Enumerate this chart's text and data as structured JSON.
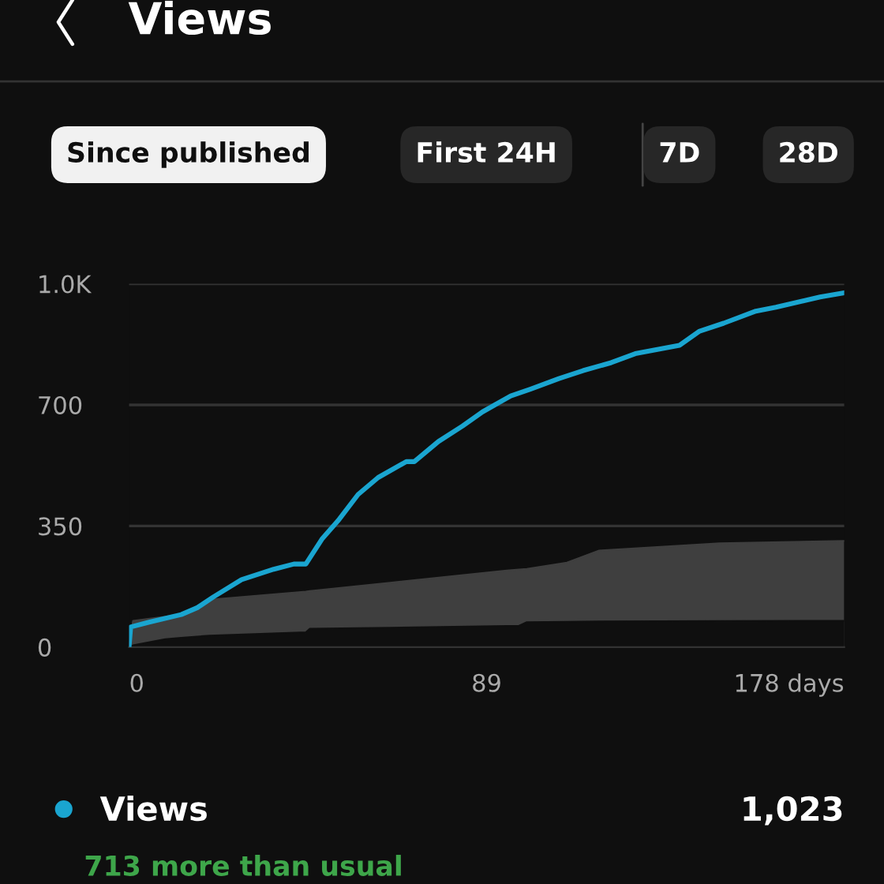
{
  "chart_data": {
    "type": "line",
    "title": "Views",
    "annotations": [
      "Since published",
      "First 24H",
      "7D",
      "28D",
      "1,023",
      "713 more than usual"
    ],
    "xlim": [
      0,
      178
    ],
    "xticks": [
      0,
      89,
      {
        "value": 178,
        "label": "178 days"
      }
    ],
    "ylim": [
      0,
      1050
    ],
    "yticks": [
      0,
      350,
      700,
      {
        "value": 1050,
        "label": "1.0K"
      }
    ],
    "grid": "y",
    "legend": "bottom",
    "line_style": "solid",
    "series": [
      {
        "type": "area",
        "color": "#3f3f3f",
        "x": [
          0,
          1,
          9,
          13,
          20,
          44,
          45,
          65,
          94,
          97,
          99,
          109,
          117,
          147,
          178
        ],
        "values": [
          0,
          76,
          88,
          94,
          137,
          160,
          162,
          186,
          221,
          224,
          226,
          244,
          279,
          300,
          307
        ]
      },
      {
        "type": "area",
        "color": "#0f0f0f",
        "x": [
          0,
          1,
          9,
          13,
          20,
          44,
          45,
          65,
          94,
          97,
          99,
          109,
          117,
          147,
          178
        ],
        "values": [
          0,
          5,
          23,
          27,
          33,
          43,
          53,
          56,
          61,
          61,
          72,
          73,
          74,
          75,
          76
        ]
      },
      {
        "name": "Views",
        "color": "#1aa5d0",
        "x": [
          0,
          0.4,
          5,
          13,
          17,
          21,
          28,
          36,
          41,
          44,
          48,
          52,
          57,
          62,
          69,
          71,
          77,
          83,
          88,
          95,
          100,
          107,
          113,
          120,
          126,
          137,
          142,
          148,
          156,
          161,
          172,
          178
        ],
        "values": [
          0,
          58,
          72,
          94,
          114,
          145,
          195,
          225,
          240,
          240,
          312,
          365,
          441,
          490,
          536,
          536,
          594,
          639,
          680,
          726,
          746,
          776,
          799,
          822,
          848,
          872,
          913,
          936,
          971,
          982,
          1012,
          1024
        ]
      }
    ]
  }
}
